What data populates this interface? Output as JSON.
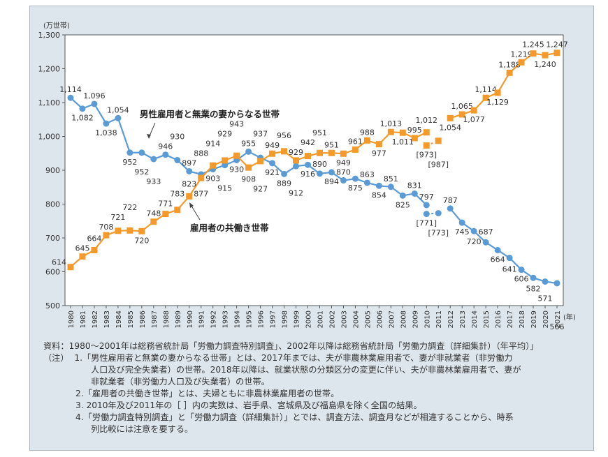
{
  "chart_data": {
    "type": "line",
    "yunit": "(万世帯)",
    "xunit": "(年)",
    "ylim": [
      500,
      1300
    ],
    "yticks": [
      500,
      600,
      700,
      800,
      900,
      1000,
      1100,
      1200,
      1300
    ],
    "grid": false,
    "x": [
      1980,
      1981,
      1982,
      1983,
      1984,
      1985,
      1986,
      1987,
      1988,
      1989,
      1990,
      1991,
      1992,
      1993,
      1994,
      1995,
      1996,
      1997,
      1998,
      1999,
      2000,
      2001,
      2002,
      2003,
      2004,
      2005,
      2006,
      2007,
      2008,
      2009,
      2010,
      2011,
      2012,
      2013,
      2014,
      2015,
      2016,
      2017,
      2018,
      2019,
      2020,
      2021
    ],
    "series": [
      {
        "name": "男性雇用者と無業の妻からなる世帯",
        "color": "#5b9bd5",
        "marker": "circle",
        "values": [
          1114,
          1082,
          1096,
          1038,
          1054,
          952,
          952,
          933,
          946,
          930,
          897,
          888,
          903,
          915,
          930,
          955,
          937,
          921,
          889,
          912,
          916,
          890,
          894,
          870,
          875,
          863,
          854,
          851,
          825,
          831,
          797,
          null,
          787,
          745,
          720,
          687,
          664,
          641,
          606,
          582,
          571,
          566
        ],
        "bracketed": {
          "x": [
            2010,
            2011
          ],
          "values": [
            771,
            773
          ]
        }
      },
      {
        "name": "雇用者の共働き世帯",
        "color": "#f39a2b",
        "marker": "square",
        "values": [
          614,
          645,
          664,
          708,
          721,
          722,
          720,
          748,
          771,
          783,
          823,
          877,
          914,
          929,
          943,
          908,
          927,
          949,
          956,
          929,
          942,
          951,
          951,
          949,
          961,
          988,
          977,
          1013,
          1011,
          995,
          1012,
          null,
          1054,
          1065,
          1077,
          1114,
          1129,
          1188,
          1219,
          1245,
          1240,
          1247
        ],
        "bracketed": {
          "x": [
            2010,
            2011
          ],
          "values": [
            973,
            987
          ]
        }
      }
    ]
  },
  "notes": {
    "source": "資料：1980～2001年は総務省統計局「労働力調査特別調査」、2002年以降は総務省統計局「労働力調査（詳細集計）（年平均）」",
    "note_prefix": "（注）",
    "n1_a": "1.「男性雇用者と無業の妻からなる世帯」とは、2017年までは、夫が非農林業雇用者で、妻が非就業者（非労働力",
    "n1_b": "人口及び完全失業者）の世帯。2018年以降は、就業状態の分類区分の変更に伴い、夫が非農林業雇用者で、妻が",
    "n1_c": "非就業者（非労働力人口及び失業者）の世帯。",
    "n2": "2.「雇用者の共働き世帯」とは、夫婦ともに非農林業雇用者の世帯。",
    "n3": "3. 2010年及び2011年の［ ］内の実数は、岩手県、宮城県及び福島県を除く全国の結果。",
    "n4_a": "4.「労働力調査特別調査」と「労働力調査（詳細集計）」とでは、調査方法、調査月などが相違することから、時系",
    "n4_b": "列比較には注意を要する。"
  }
}
